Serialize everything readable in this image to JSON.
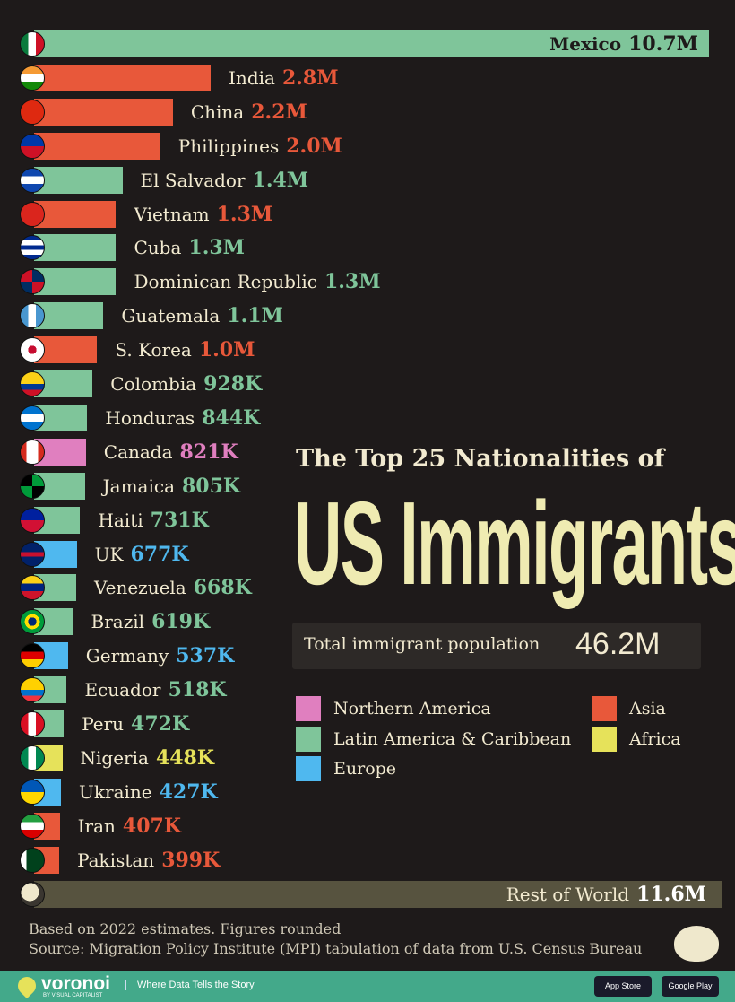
{
  "chart_data": {
    "type": "bar",
    "orientation": "horizontal",
    "title": "The Top 25 Nationalities of",
    "title_main": "US Immigrants",
    "unit": "millions",
    "categories": [
      "Mexico",
      "India",
      "China",
      "Philippines",
      "El Salvador",
      "Vietnam",
      "Cuba",
      "Dominican Republic",
      "Guatemala",
      "S. Korea",
      "Colombia",
      "Honduras",
      "Canada",
      "Jamaica",
      "Haiti",
      "UK",
      "Venezuela",
      "Brazil",
      "Germany",
      "Ecuador",
      "Peru",
      "Nigeria",
      "Ukraine",
      "Iran",
      "Pakistan"
    ],
    "values": [
      10.7,
      2.8,
      2.2,
      2.0,
      1.4,
      1.3,
      1.3,
      1.3,
      1.1,
      1.0,
      0.928,
      0.844,
      0.821,
      0.805,
      0.731,
      0.677,
      0.668,
      0.619,
      0.537,
      0.518,
      0.472,
      0.448,
      0.427,
      0.407,
      0.399
    ],
    "value_labels": [
      "10.7M",
      "2.8M",
      "2.2M",
      "2.0M",
      "1.4M",
      "1.3M",
      "1.3M",
      "1.3M",
      "1.1M",
      "1.0M",
      "928K",
      "844K",
      "821K",
      "805K",
      "731K",
      "677K",
      "668K",
      "619K",
      "537K",
      "518K",
      "472K",
      "448K",
      "427K",
      "407K",
      "399K"
    ],
    "regions": [
      "latam",
      "asia",
      "asia",
      "asia",
      "latam",
      "asia",
      "latam",
      "latam",
      "latam",
      "asia",
      "latam",
      "latam",
      "namerica",
      "latam",
      "latam",
      "europe",
      "latam",
      "latam",
      "europe",
      "latam",
      "latam",
      "africa",
      "europe",
      "asia",
      "asia"
    ],
    "rest": {
      "label": "Rest of World",
      "value": 11.6,
      "value_label": "11.6M"
    },
    "legend": [
      {
        "key": "namerica",
        "name": "Northern America",
        "color": "#e07fbf"
      },
      {
        "key": "latam",
        "name": "Latin America & Caribbean",
        "color": "#7fc59a"
      },
      {
        "key": "europe",
        "name": "Europe",
        "color": "#4fb8ef"
      },
      {
        "key": "asia",
        "name": "Asia",
        "color": "#e8583a"
      },
      {
        "key": "africa",
        "name": "Africa",
        "color": "#e6e25a"
      }
    ],
    "legend_placement": "right",
    "grid": false
  },
  "total": {
    "label": "Total immigrant population",
    "value": "46.2M"
  },
  "footer": {
    "note": "Based on 2022 estimates. Figures rounded",
    "source": "Source: Migration Policy Institute (MPI) tabulation of data from U.S. Census Bureau",
    "brand": "voronoi",
    "brand_sub": "BY VISUAL CAPITALIST",
    "tagline": "Where Data Tells the Story",
    "app_store": "App Store",
    "google_play": "Google Play"
  }
}
